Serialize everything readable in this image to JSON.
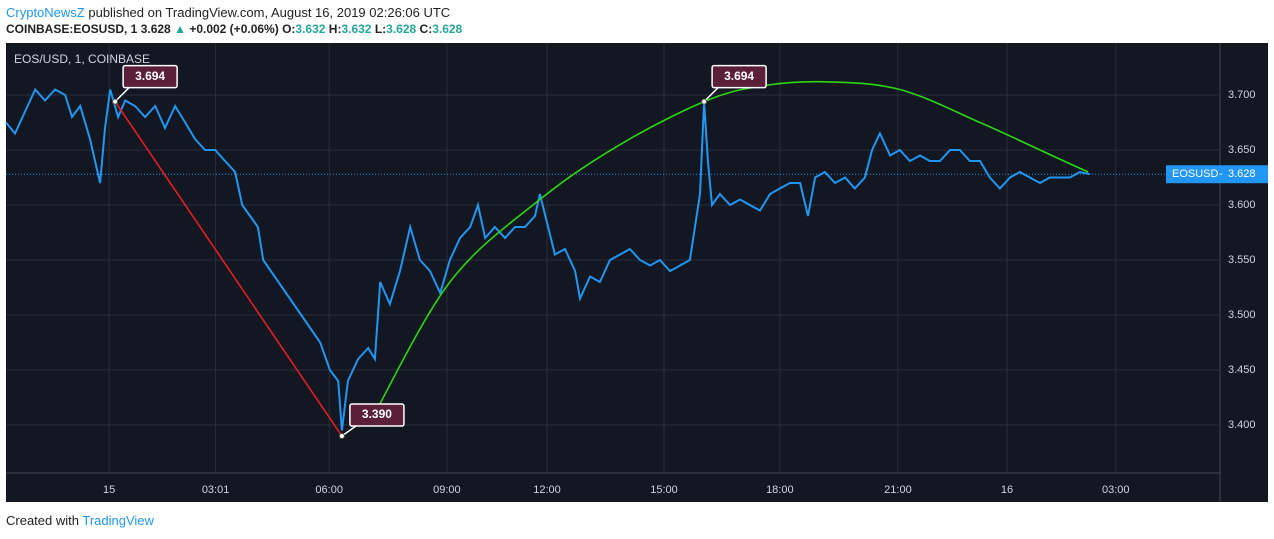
{
  "header": {
    "author": "CryptoNewsZ",
    "published": " published on TradingView.com, August 16, 2019 02:26:06 UTC",
    "symbol": "COINBASE:EOSUSD, 1",
    "last": "3.628",
    "arrow": "▲",
    "change": "+0.002 (+0.06%)",
    "o_label": "O:",
    "o": "3.632",
    "h_label": "H:",
    "h": "3.632",
    "l_label": "L:",
    "l": "3.628",
    "c_label": "C:",
    "c": "3.628"
  },
  "footer": {
    "created": "Created with",
    "brand": "TradingView"
  },
  "chart_data": {
    "type": "line",
    "title": "EOS/USD, 1, COINBASE",
    "series": [
      {
        "name": "EOSUSD",
        "color": "#2196f3",
        "x": [
          -2.75,
          -2.51,
          -2.24,
          -1.97,
          -1.71,
          -1.44,
          -1.17,
          -0.99,
          -0.77,
          -0.51,
          -0.24,
          -0.11,
          0.03,
          0.24,
          0.43,
          0.69,
          0.96,
          1.23,
          1.49,
          1.76,
          2.03,
          2.29,
          2.56,
          2.83,
          3.09,
          3.36,
          3.55,
          3.76,
          3.97,
          4.11,
          5.63,
          5.89,
          6.11,
          6.21,
          6.37,
          6.64,
          6.91,
          7.09,
          7.23,
          7.49,
          7.76,
          8.03,
          8.29,
          8.56,
          8.83,
          9.09,
          9.36,
          9.63,
          9.84,
          10.03,
          10.29,
          10.56,
          10.83,
          11.09,
          11.36,
          11.49,
          11.71,
          11.89,
          12.16,
          12.43,
          12.56,
          12.83,
          13.09,
          13.36,
          13.63,
          13.89,
          14.16,
          14.43,
          14.69,
          14.96,
          15.23,
          15.49,
          15.76,
          15.87,
          15.97,
          16.08,
          16.29,
          16.56,
          16.83,
          17.09,
          17.36,
          17.63,
          17.89,
          18.16,
          18.43,
          18.64,
          18.83,
          19.09,
          19.36,
          19.63,
          19.89,
          20.16,
          20.35,
          20.56,
          20.83,
          21.09,
          21.36,
          21.63,
          21.89,
          22.16,
          22.43,
          22.69,
          22.96,
          23.23,
          23.49,
          23.76,
          24.03,
          24.29,
          24.56,
          24.83,
          25.09,
          25.36,
          25.63,
          25.89,
          26.16
        ],
        "values": [
          3.675,
          3.665,
          3.685,
          3.705,
          3.695,
          3.705,
          3.7,
          3.68,
          3.69,
          3.66,
          3.62,
          3.67,
          3.705,
          3.68,
          3.695,
          3.69,
          3.68,
          3.69,
          3.67,
          3.69,
          3.675,
          3.66,
          3.65,
          3.65,
          3.64,
          3.63,
          3.6,
          3.59,
          3.58,
          3.55,
          3.475,
          3.45,
          3.44,
          3.395,
          3.44,
          3.46,
          3.47,
          3.46,
          3.53,
          3.51,
          3.54,
          3.58,
          3.55,
          3.54,
          3.52,
          3.55,
          3.57,
          3.58,
          3.6,
          3.57,
          3.58,
          3.57,
          3.58,
          3.58,
          3.59,
          3.61,
          3.58,
          3.555,
          3.56,
          3.54,
          3.515,
          3.535,
          3.53,
          3.55,
          3.555,
          3.56,
          3.55,
          3.545,
          3.55,
          3.54,
          3.545,
          3.55,
          3.61,
          3.694,
          3.64,
          3.6,
          3.61,
          3.6,
          3.605,
          3.6,
          3.595,
          3.61,
          3.615,
          3.62,
          3.62,
          3.59,
          3.625,
          3.63,
          3.62,
          3.625,
          3.615,
          3.625,
          3.65,
          3.665,
          3.645,
          3.65,
          3.64,
          3.645,
          3.64,
          3.64,
          3.65,
          3.65,
          3.64,
          3.64,
          3.625,
          3.615,
          3.625,
          3.63,
          3.625,
          3.62,
          3.625,
          3.625,
          3.625,
          3.63,
          3.628
        ]
      }
    ],
    "last_price": {
      "value": 3.628,
      "label": "3.628"
    },
    "trend_lines": [
      {
        "color": "#e31e24",
        "x": [
          0.16,
          6.21
        ],
        "values": [
          3.694,
          3.39
        ]
      },
      {
        "color": "#2dd614",
        "x": [
          7.0,
          9.09,
          11.49,
          13.63,
          15.87,
          17.36,
          19.09,
          21.09,
          23.23,
          24.83,
          26.11
        ],
        "values": [
          3.405,
          3.53,
          3.605,
          3.655,
          3.694,
          3.708,
          3.712,
          3.705,
          3.675,
          3.65,
          3.63
        ]
      }
    ],
    "annotations": [
      {
        "x": 0.16,
        "value": 3.694,
        "label": "3.694"
      },
      {
        "x": 6.21,
        "value": 3.39,
        "label": "3.390"
      },
      {
        "x": 15.87,
        "value": 3.694,
        "label": "3.694"
      }
    ],
    "xlim": [
      -2.75,
      29.63
    ],
    "ylim": [
      3.3564,
      3.7473
    ],
    "xticks": [
      {
        "value": 0,
        "label": "15"
      },
      {
        "value": 2.84,
        "label": "03:01"
      },
      {
        "value": 5.87,
        "label": "06:00"
      },
      {
        "value": 9.01,
        "label": "09:00"
      },
      {
        "value": 11.68,
        "label": "12:00"
      },
      {
        "value": 14.8,
        "label": "15:00"
      },
      {
        "value": 17.89,
        "label": "18:00"
      },
      {
        "value": 21.04,
        "label": "21:00"
      },
      {
        "value": 23.95,
        "label": "16"
      },
      {
        "value": 26.85,
        "label": "03:00"
      }
    ],
    "yticks": [
      {
        "value": 3.4,
        "label": "3.400"
      },
      {
        "value": 3.45,
        "label": "3.450"
      },
      {
        "value": 3.5,
        "label": "3.500"
      },
      {
        "value": 3.55,
        "label": "3.550"
      },
      {
        "value": 3.6,
        "label": "3.600"
      },
      {
        "value": 3.65,
        "label": "3.650"
      },
      {
        "value": 3.7,
        "label": "3.700"
      }
    ],
    "grid": true
  }
}
